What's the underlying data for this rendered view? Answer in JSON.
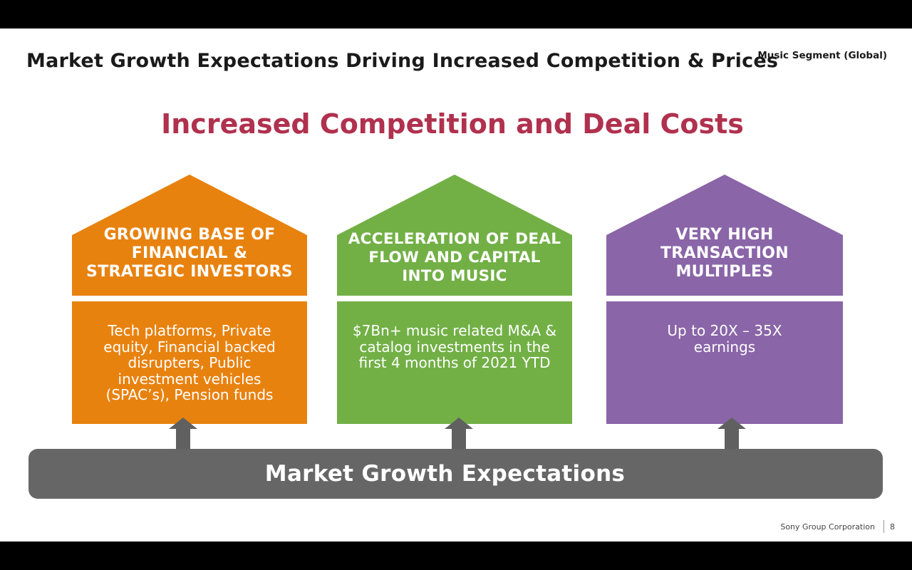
{
  "title": "Market Growth Expectations Driving Increased Competition & Prices",
  "segment": "Music Segment (Global)",
  "subtitle": "Increased Competition and Deal Costs",
  "colors": {
    "orange": "#e8820f",
    "green": "#72b046",
    "purple": "#8a65a8",
    "gray_bar": "#666666",
    "subtitle": "#b0314e"
  },
  "houses": [
    {
      "heading_lines": [
        "GROWING BASE OF",
        "FINANCIAL &",
        "STRATEGIC INVESTORS"
      ],
      "desc_lines": [
        "Tech platforms, Private",
        "equity, Financial backed",
        "disrupters, Public",
        "investment vehicles",
        "(SPAC’s), Pension funds"
      ]
    },
    {
      "heading_lines": [
        "ACCELERATION OF DEAL",
        "FLOW AND CAPITAL",
        "INTO MUSIC"
      ],
      "desc_lines": [
        "$7Bn+ music related M&A &",
        "catalog investments in the",
        "first 4 months of 2021 YTD"
      ]
    },
    {
      "heading_lines": [
        "VERY HIGH",
        "TRANSACTION",
        "MULTIPLES"
      ],
      "desc_lines": [
        "Up to  20X – 35X",
        "earnings"
      ]
    }
  ],
  "base_label": "Market Growth Expectations",
  "footer": {
    "company": "Sony Group Corporation",
    "page": "8"
  }
}
